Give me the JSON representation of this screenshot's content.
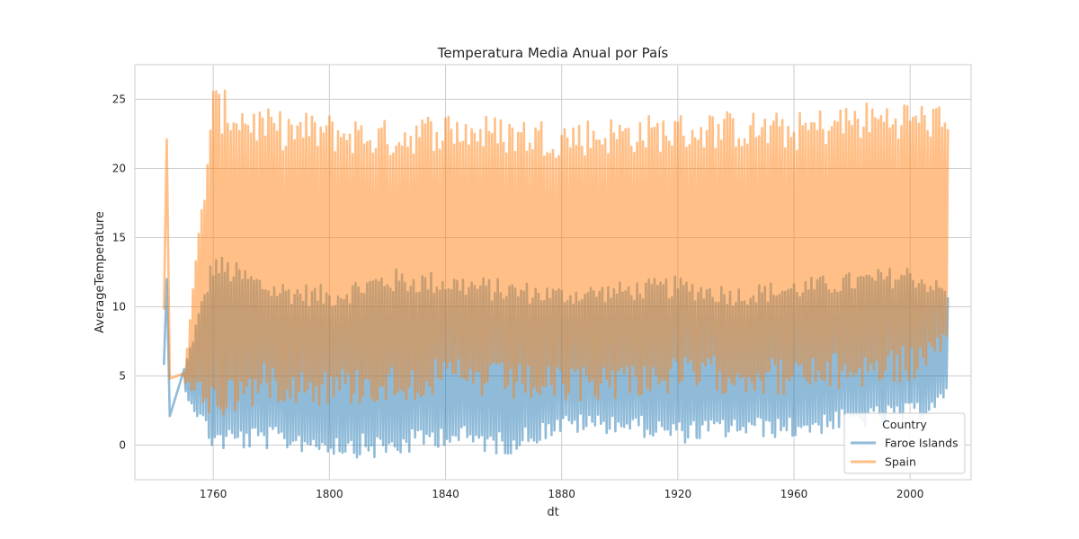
{
  "chart_data": {
    "type": "line",
    "title": "Temperatura Media Anual por País",
    "xlabel": "dt",
    "ylabel": "AverageTemperature",
    "xlim": [
      1733,
      2021
    ],
    "ylim": [
      -2.5,
      27.5
    ],
    "xticks": [
      "1760",
      "1800",
      "1840",
      "1880",
      "1920",
      "1960",
      "2000"
    ],
    "yticks": [
      "0",
      "5",
      "10",
      "15",
      "20",
      "25"
    ],
    "grid": true,
    "legend": {
      "title": "Country",
      "placement": "bottom-right"
    },
    "series": [
      {
        "name": "Faroe Islands",
        "color": "#1f77b4",
        "opacity": 0.5,
        "x": [
          1743,
          1744,
          1745,
          1750,
          1760,
          1780,
          1800,
          1820,
          1840,
          1860,
          1880,
          1900,
          1920,
          1940,
          1960,
          1980,
          2000,
          2013
        ],
        "y_max": [
          6.1,
          12.0,
          9.0,
          5.5,
          14.0,
          12.0,
          11.5,
          12.8,
          12.5,
          12.0,
          11.5,
          11.8,
          12.2,
          11.5,
          12.0,
          12.5,
          13.0,
          11.5
        ],
        "y_min": [
          5.8,
          9.3,
          2.1,
          3.9,
          -0.5,
          -0.3,
          -0.7,
          -1.1,
          0.0,
          -0.8,
          0.8,
          0.9,
          0.1,
          0.6,
          0.5,
          1.2,
          1.5,
          3.0
        ]
      },
      {
        "name": "Spain",
        "color": "#ff7f0e",
        "opacity": 0.5,
        "x": [
          1743,
          1744,
          1745,
          1750,
          1760,
          1780,
          1800,
          1820,
          1840,
          1860,
          1880,
          1900,
          1920,
          1940,
          1960,
          1980,
          2000,
          2013
        ],
        "y_max": [
          10.2,
          22.1,
          11.5,
          5.2,
          26.0,
          24.2,
          24.0,
          23.5,
          24.2,
          23.8,
          23.6,
          23.8,
          24.0,
          24.2,
          24.0,
          24.8,
          25.0,
          24.5
        ],
        "y_min": [
          9.8,
          5.6,
          4.8,
          4.6,
          1.6,
          3.2,
          2.8,
          3.0,
          3.5,
          3.2,
          2.8,
          3.4,
          3.6,
          3.8,
          3.5,
          4.0,
          4.5,
          5.5
        ]
      }
    ]
  }
}
